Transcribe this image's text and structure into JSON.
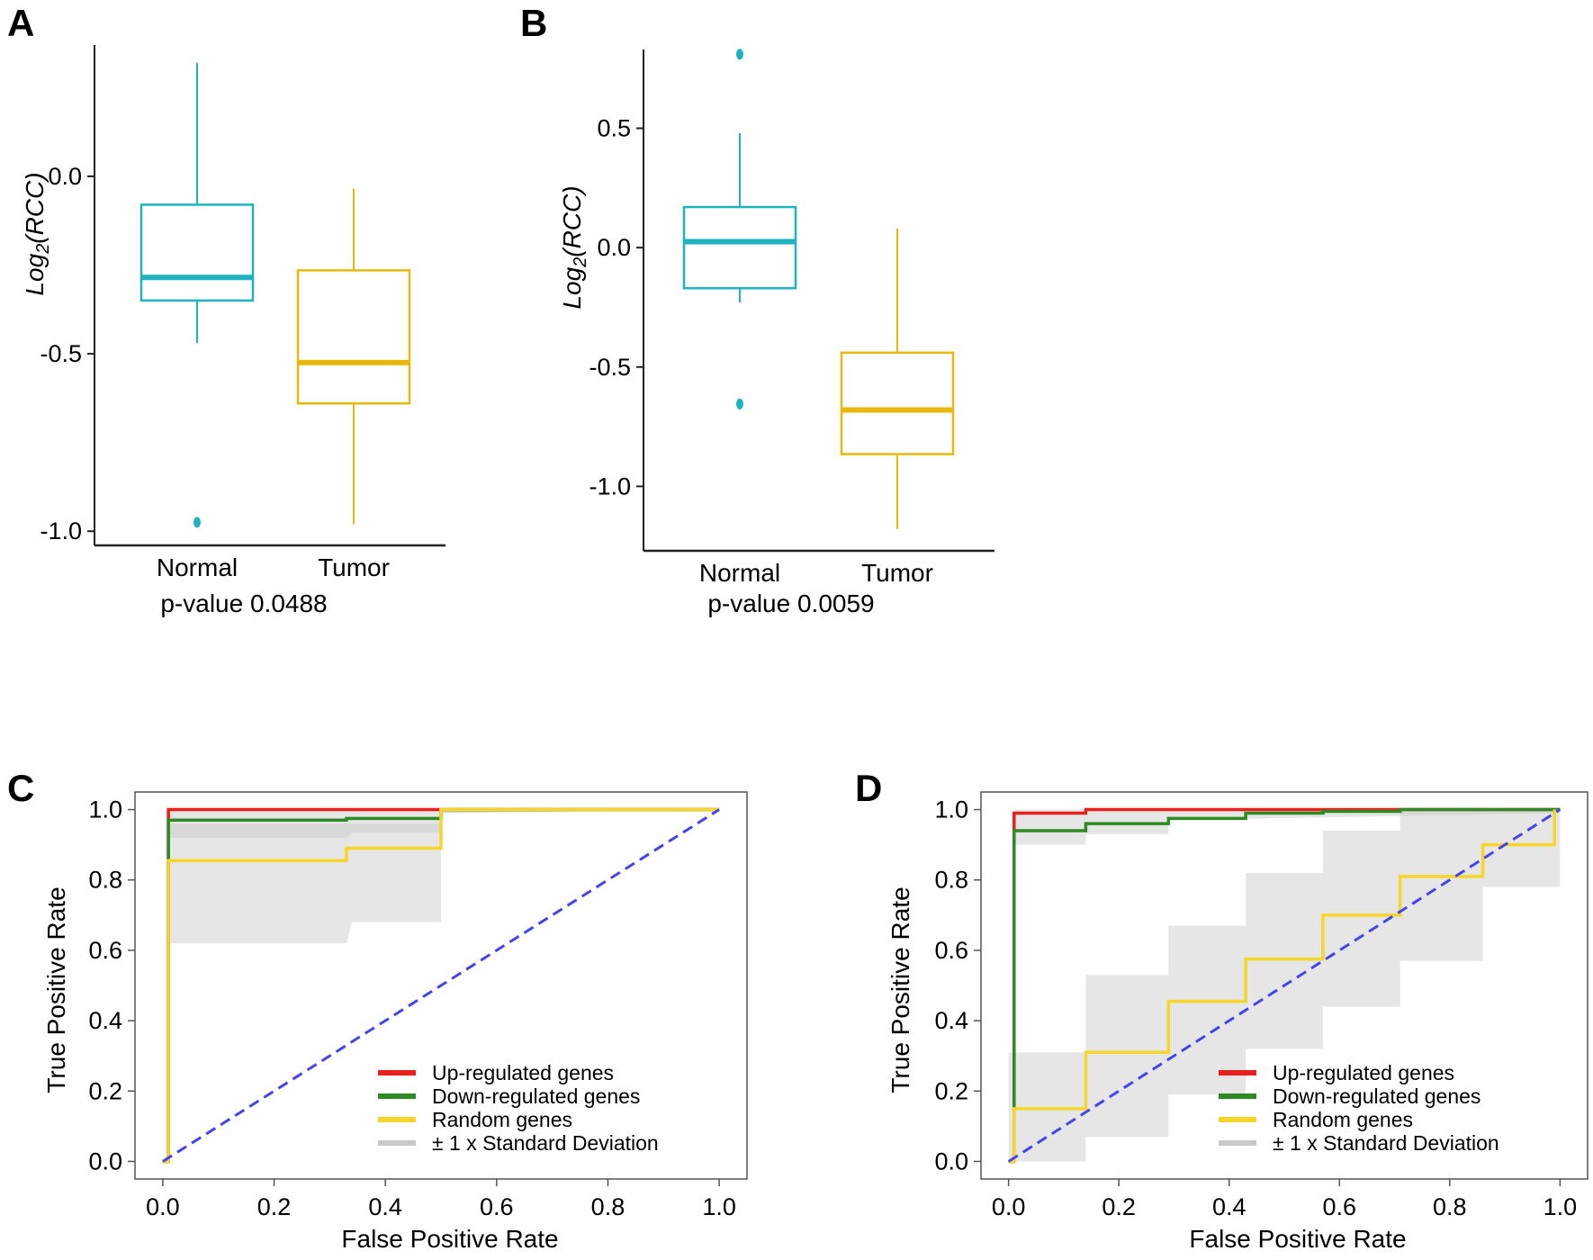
{
  "figure": {
    "panels": [
      "A",
      "B",
      "C",
      "D"
    ]
  },
  "chart_data": [
    {
      "id": "A",
      "type": "box",
      "panel_label": "A",
      "ylabel_main": "Log",
      "ylabel_sub": "2",
      "ylabel_tail": "(RCC)",
      "categories": [
        "Normal",
        "Tumor"
      ],
      "footer": "p-value 0.0488",
      "ylim": [
        -1.04,
        0.37
      ],
      "yticks": [
        0.0,
        -0.5,
        -1.0
      ],
      "ytick_labels": [
        "0.0",
        "-0.5",
        "-1.0"
      ],
      "boxes": [
        {
          "name": "Normal",
          "color": "#1fb3c2",
          "whisker_low": -0.47,
          "q1": -0.35,
          "median": -0.285,
          "q3": -0.08,
          "whisker_high": 0.32,
          "outliers": [
            -0.975
          ]
        },
        {
          "name": "Tumor",
          "color": "#e8b90c",
          "whisker_low": -0.98,
          "q1": -0.64,
          "median": -0.525,
          "q3": -0.265,
          "whisker_high": -0.035,
          "outliers": []
        }
      ]
    },
    {
      "id": "B",
      "type": "box",
      "panel_label": "B",
      "ylabel_main": "Log",
      "ylabel_sub": "2",
      "ylabel_tail": "(RCC)",
      "categories": [
        "Normal",
        "Tumor"
      ],
      "footer": "p-value 0.0059",
      "ylim": [
        -1.27,
        0.83
      ],
      "yticks": [
        0.5,
        0.0,
        -0.5,
        -1.0
      ],
      "ytick_labels": [
        "0.5",
        "0.0",
        "-0.5",
        "-1.0"
      ],
      "boxes": [
        {
          "name": "Normal",
          "color": "#1fb3c2",
          "whisker_low": -0.23,
          "q1": -0.17,
          "median": 0.025,
          "q3": 0.17,
          "whisker_high": 0.48,
          "outliers": [
            0.81,
            -0.655
          ]
        },
        {
          "name": "Tumor",
          "color": "#e8b90c",
          "whisker_low": -1.18,
          "q1": -0.865,
          "median": -0.68,
          "q3": -0.44,
          "whisker_high": 0.08,
          "outliers": []
        }
      ]
    },
    {
      "id": "C",
      "type": "line",
      "panel_label": "C",
      "xlabel": "False Positive Rate",
      "ylabel": "True Positive Rate",
      "xlim": [
        -0.05,
        1.05
      ],
      "ylim": [
        -0.05,
        1.05
      ],
      "xticks": [
        0.0,
        0.2,
        0.4,
        0.6,
        0.8,
        1.0
      ],
      "xtick_labels": [
        "0.0",
        "0.2",
        "0.4",
        "0.6",
        "0.8",
        "1.0"
      ],
      "yticks": [
        0.0,
        0.2,
        0.4,
        0.6,
        0.8,
        1.0
      ],
      "ytick_labels": [
        "0.0",
        "0.2",
        "0.4",
        "0.6",
        "0.8",
        "1.0"
      ],
      "legend": [
        "Up-regulated genes",
        "Down-regulated genes",
        "Random genes",
        "± 1 x Standard Deviation"
      ],
      "legend_position": "bottom-right",
      "series": [
        {
          "name": "Up-regulated genes",
          "color": "#e8201c",
          "x": [
            0.0,
            0.01,
            0.01,
            1.0
          ],
          "y": [
            0.0,
            0.0,
            1.0,
            1.0
          ]
        },
        {
          "name": "Down-regulated genes",
          "color": "#2e8a22",
          "x": [
            0.0,
            0.01,
            0.01,
            0.33,
            0.33,
            0.5,
            0.5,
            1.0
          ],
          "y": [
            0.0,
            0.0,
            0.97,
            0.97,
            0.975,
            0.975,
            1.0,
            1.0
          ]
        },
        {
          "name": "Random genes",
          "color": "#f5d629",
          "x": [
            0.0,
            0.01,
            0.01,
            0.33,
            0.33,
            0.5,
            0.5,
            1.0
          ],
          "y": [
            0.0,
            0.0,
            0.855,
            0.855,
            0.89,
            0.89,
            1.0,
            1.0
          ]
        },
        {
          "name": "Diagonal",
          "color": "#4444ee",
          "dashed": true,
          "x": [
            0.0,
            1.0
          ],
          "y": [
            0.0,
            1.0
          ]
        }
      ],
      "bands": [
        {
          "x": [
            0.01,
            0.33,
            0.34,
            0.5,
            0.5,
            1.0
          ],
          "upper": [
            0.96,
            0.96,
            0.96,
            0.96,
            1.0,
            1.0
          ],
          "lower": [
            0.62,
            0.62,
            0.68,
            0.68,
            0.99,
            1.0
          ]
        },
        {
          "x": [
            0.01,
            0.33,
            0.34,
            0.5,
            0.5,
            1.0
          ],
          "upper": [
            1.0,
            1.0,
            1.0,
            1.0,
            1.0,
            1.0
          ],
          "lower": [
            0.92,
            0.92,
            0.935,
            0.935,
            0.99,
            1.0
          ]
        }
      ]
    },
    {
      "id": "D",
      "type": "line",
      "panel_label": "D",
      "xlabel": "False Positive Rate",
      "ylabel": "True Positive Rate",
      "xlim": [
        -0.05,
        1.05
      ],
      "ylim": [
        -0.05,
        1.05
      ],
      "xticks": [
        0.0,
        0.2,
        0.4,
        0.6,
        0.8,
        1.0
      ],
      "xtick_labels": [
        "0.0",
        "0.2",
        "0.4",
        "0.6",
        "0.8",
        "1.0"
      ],
      "yticks": [
        0.0,
        0.2,
        0.4,
        0.6,
        0.8,
        1.0
      ],
      "ytick_labels": [
        "0.0",
        "0.2",
        "0.4",
        "0.6",
        "0.8",
        "1.0"
      ],
      "legend": [
        "Up-regulated genes",
        "Down-regulated genes",
        "Random genes",
        "± 1 x Standard Deviation"
      ],
      "legend_position": "bottom-right",
      "series": [
        {
          "name": "Up-regulated genes",
          "color": "#e8201c",
          "x": [
            0.0,
            0.01,
            0.01,
            0.14,
            0.14,
            1.0
          ],
          "y": [
            0.0,
            0.0,
            0.99,
            0.99,
            1.0,
            1.0
          ]
        },
        {
          "name": "Down-regulated genes",
          "color": "#2e8a22",
          "x": [
            0.0,
            0.01,
            0.01,
            0.14,
            0.14,
            0.29,
            0.29,
            0.43,
            0.43,
            0.57,
            0.57,
            0.71,
            0.71,
            1.0
          ],
          "y": [
            0.0,
            0.0,
            0.94,
            0.94,
            0.96,
            0.96,
            0.975,
            0.975,
            0.99,
            0.99,
            0.995,
            0.995,
            1.0,
            1.0
          ]
        },
        {
          "name": "Random genes",
          "color": "#f5d629",
          "x": [
            0.0,
            0.01,
            0.01,
            0.14,
            0.14,
            0.29,
            0.29,
            0.43,
            0.43,
            0.57,
            0.57,
            0.71,
            0.71,
            0.86,
            0.86,
            0.99,
            0.99
          ],
          "y": [
            0.0,
            0.0,
            0.15,
            0.15,
            0.31,
            0.31,
            0.455,
            0.455,
            0.575,
            0.575,
            0.7,
            0.7,
            0.81,
            0.81,
            0.9,
            0.9,
            1.0
          ]
        },
        {
          "name": "Diagonal",
          "color": "#4444ee",
          "dashed": true,
          "x": [
            0.0,
            1.0
          ],
          "y": [
            0.0,
            1.0
          ]
        }
      ],
      "bands": [
        {
          "x": [
            0.0,
            0.14,
            0.14,
            0.29,
            0.29,
            0.43,
            0.43,
            0.57,
            0.57,
            0.71,
            0.71,
            0.86,
            0.86,
            1.0
          ],
          "upper": [
            0.31,
            0.31,
            0.53,
            0.53,
            0.67,
            0.67,
            0.82,
            0.82,
            0.94,
            0.94,
            0.995,
            0.995,
            1.0,
            1.0
          ],
          "lower": [
            0.0,
            0.0,
            0.07,
            0.07,
            0.19,
            0.19,
            0.32,
            0.32,
            0.44,
            0.44,
            0.57,
            0.57,
            0.78,
            0.78
          ]
        },
        {
          "x": [
            0.01,
            0.14,
            0.14,
            0.29,
            0.29,
            1.0
          ],
          "upper": [
            1.0,
            1.0,
            1.0,
            1.0,
            1.0,
            1.0
          ],
          "lower": [
            0.9,
            0.9,
            0.93,
            0.93,
            0.97,
            0.99
          ]
        }
      ]
    }
  ]
}
